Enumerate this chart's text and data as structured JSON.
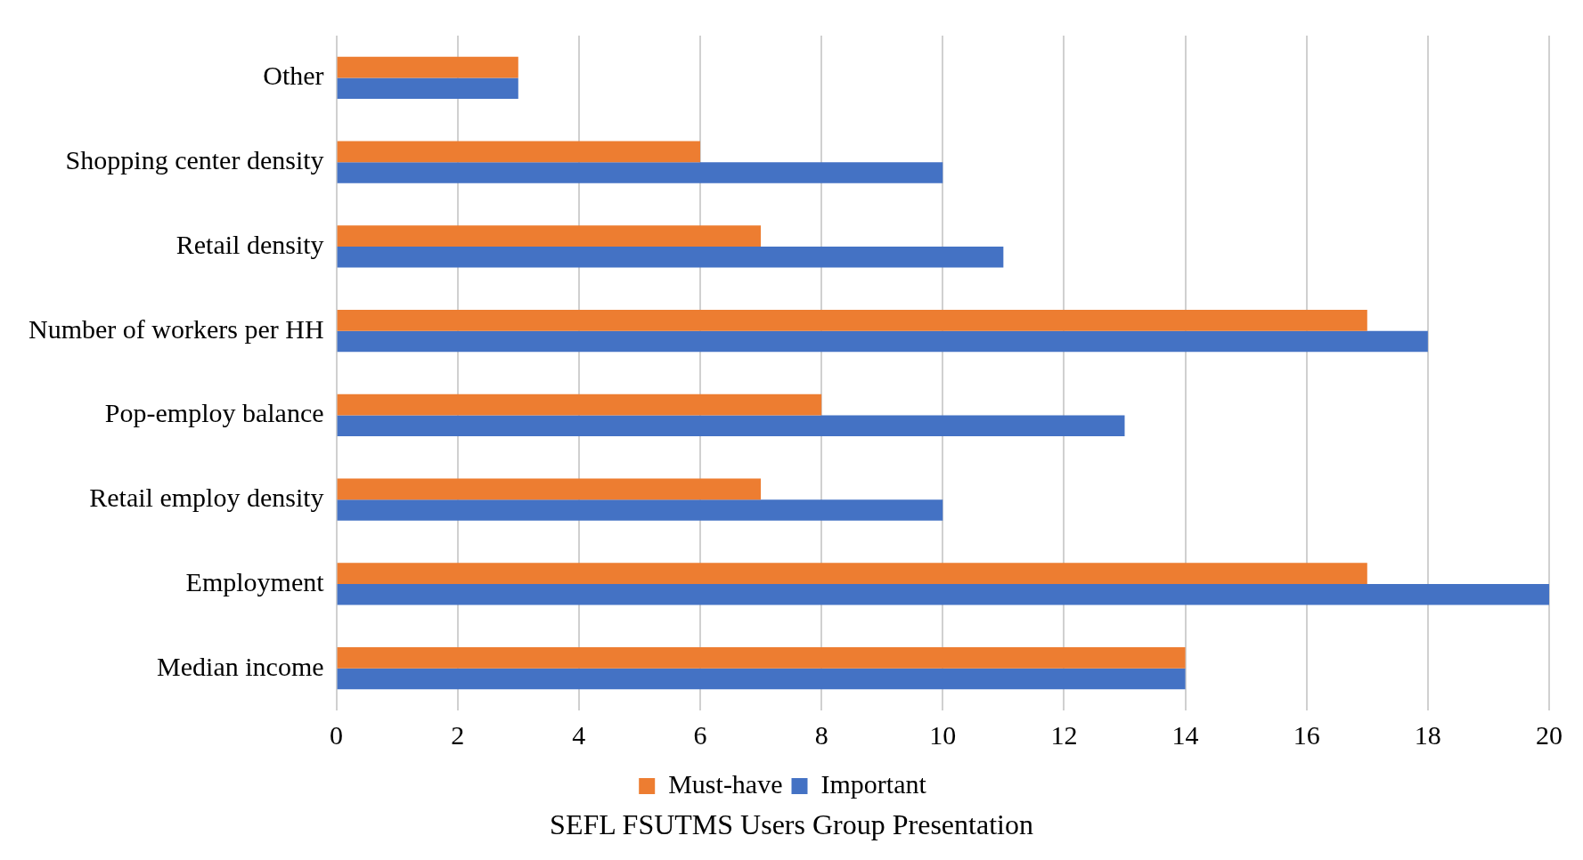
{
  "chart_data": {
    "type": "bar",
    "orientation": "horizontal",
    "categories": [
      "Other",
      "Shopping center density",
      "Retail density",
      "Number of workers per HH",
      "Pop-employ balance",
      "Retail employ density",
      "Employment",
      "Median income"
    ],
    "series": [
      {
        "name": "Must-have",
        "color": "#ed7d31",
        "values": [
          3,
          6,
          7,
          17,
          8,
          7,
          17,
          14
        ]
      },
      {
        "name": "Important",
        "color": "#4472c4",
        "values": [
          3,
          10,
          11,
          18,
          13,
          10,
          20,
          14
        ]
      }
    ],
    "xlim": [
      0,
      20
    ],
    "xticks": [
      0,
      2,
      4,
      6,
      8,
      10,
      12,
      14,
      16,
      18,
      20
    ],
    "grid": "x",
    "legend": "bottom",
    "annotations": [
      "SEFL FSUTMS Users Group Presentation"
    ]
  }
}
